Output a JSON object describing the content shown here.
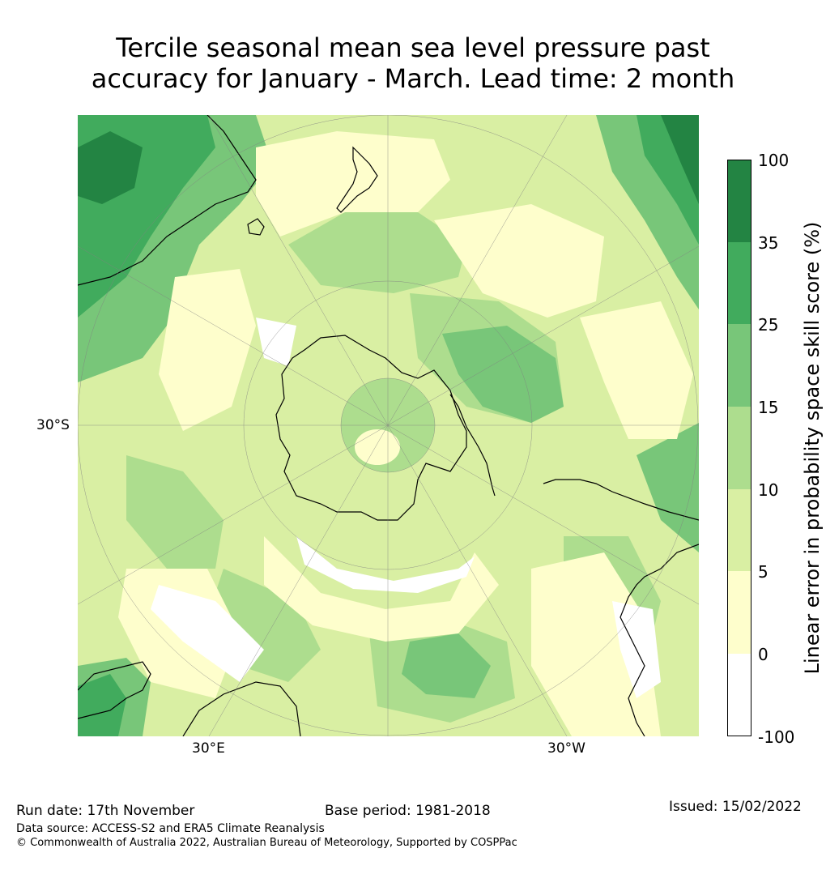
{
  "title": {
    "line1": "Tercile seasonal mean sea level pressure past",
    "line2": "accuracy for January - March. Lead time: 2 month"
  },
  "map": {
    "projection": "south-polar-stereographic",
    "lat_label": "30°S",
    "lon_labels": [
      "30°E",
      "30°W"
    ],
    "level_colors": {
      "below_0": "#ffffff",
      "0_5": "#fefecc",
      "5_10": "#d9efa3",
      "10_15": "#addd8e",
      "15_25": "#78c679",
      "25_35": "#41ab5d",
      "35_100": "#238443"
    }
  },
  "colorbar": {
    "label": "Linear error in probability space skill score (%)",
    "ticks": [
      "100",
      "35",
      "25",
      "15",
      "10",
      "5",
      "0",
      "-100"
    ],
    "colors": [
      "#238443",
      "#41ab5d",
      "#78c679",
      "#addd8e",
      "#d9efa3",
      "#fefecc",
      "#ffffff"
    ]
  },
  "footer": {
    "run_date": "Run date: 17th November",
    "base_period": "Base period: 1981-2018",
    "issued": "Issued: 15/02/2022",
    "data_source": "Data source: ACCESS-S2 and ERA5 Climate Reanalysis",
    "copyright": "© Commonwealth of Australia 2022, Australian Bureau of Meteorology, Supported by COSPPac"
  }
}
